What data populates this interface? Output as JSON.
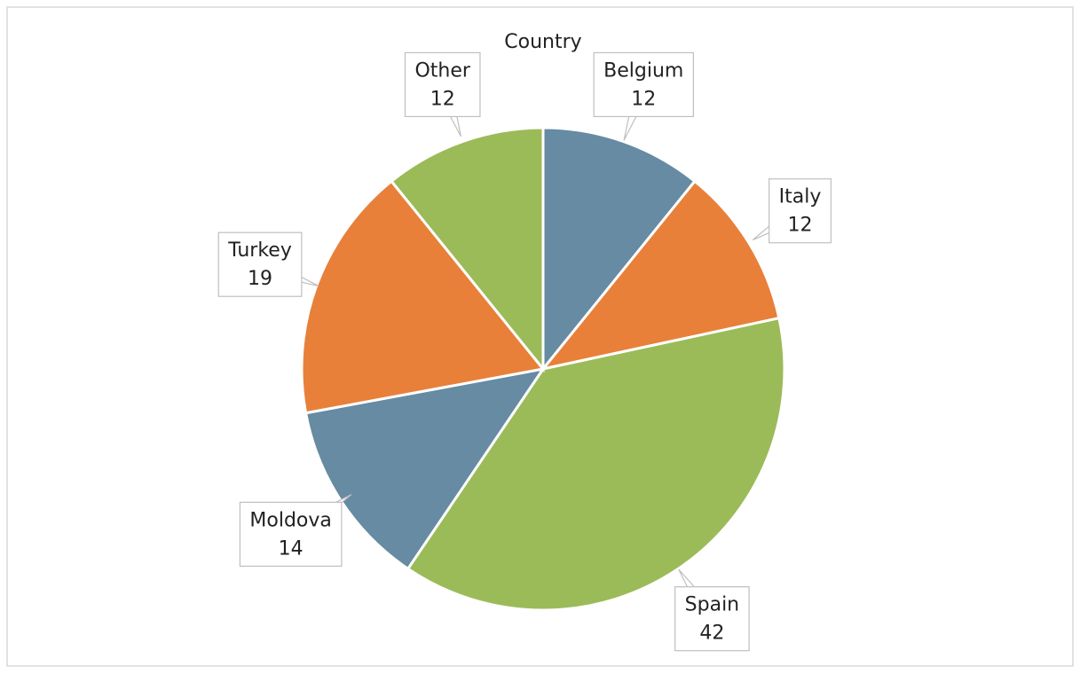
{
  "chart_data": {
    "type": "pie",
    "title": "Country",
    "categories": [
      "Belgium",
      "Italy",
      "Spain",
      "Moldova",
      "Turkey",
      "Other"
    ],
    "values": [
      12,
      12,
      42,
      14,
      19,
      12
    ],
    "colors": [
      "#668ba3",
      "#e8803a",
      "#9bbb59",
      "#668ba3",
      "#e8803a",
      "#9bbb59"
    ]
  }
}
